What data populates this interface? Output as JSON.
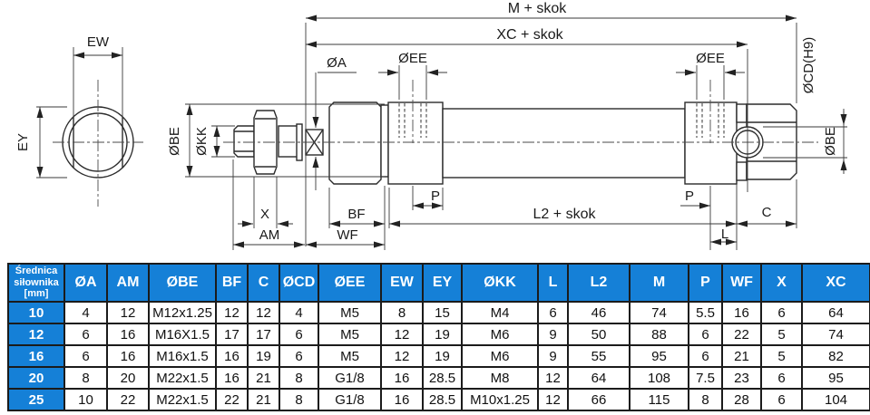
{
  "drawing": {
    "labels": {
      "ew": "EW",
      "ey": "EY",
      "m_skok": "M + skok",
      "xc_skok": "XC + skok",
      "oa": "ØA",
      "oee_front": "ØEE",
      "oee_rear": "ØEE",
      "ocd": "ØCD(H9)",
      "obe_left": "ØBE",
      "okk": "ØKK",
      "obe_right": "ØBE",
      "x": "X",
      "am": "AM",
      "bf": "BF",
      "wf": "WF",
      "p_front": "P",
      "p_rear": "P",
      "l2_skok": "L2 + skok",
      "c": "C",
      "l": "L"
    }
  },
  "table": {
    "header_col0_lines": [
      "Średnica",
      "siłownika",
      "[mm]"
    ],
    "columns": [
      "ØA",
      "AM",
      "ØBE",
      "BF",
      "C",
      "ØCD",
      "ØEE",
      "EW",
      "EY",
      "ØKK",
      "L",
      "L2",
      "M",
      "P",
      "WF",
      "X",
      "XC"
    ],
    "rows": [
      {
        "size": "10",
        "values": [
          "4",
          "12",
          "M12x1.25",
          "12",
          "12",
          "4",
          "M5",
          "8",
          "15",
          "M4",
          "6",
          "46",
          "74",
          "5.5",
          "16",
          "6",
          "64"
        ]
      },
      {
        "size": "12",
        "values": [
          "6",
          "16",
          "M16X1.5",
          "17",
          "17",
          "6",
          "M5",
          "12",
          "19",
          "M6",
          "9",
          "50",
          "88",
          "6",
          "22",
          "5",
          "74"
        ]
      },
      {
        "size": "16",
        "values": [
          "6",
          "16",
          "M16x1.5",
          "16",
          "19",
          "6",
          "M5",
          "12",
          "19",
          "M6",
          "9",
          "55",
          "95",
          "6",
          "21",
          "5",
          "82"
        ]
      },
      {
        "size": "20",
        "values": [
          "8",
          "20",
          "M22x1.5",
          "16",
          "21",
          "8",
          "G1/8",
          "16",
          "28.5",
          "M8",
          "12",
          "64",
          "108",
          "7.5",
          "23",
          "6",
          "95"
        ]
      },
      {
        "size": "25",
        "values": [
          "10",
          "22",
          "M22x1.5",
          "22",
          "21",
          "8",
          "G1/8",
          "16",
          "28.5",
          "M10x1.25",
          "12",
          "66",
          "115",
          "8",
          "28",
          "6",
          "104"
        ]
      }
    ],
    "colors": {
      "header_bg": "#1580d7",
      "header_text": "#ffffff",
      "border": "#1b1b1b"
    }
  }
}
